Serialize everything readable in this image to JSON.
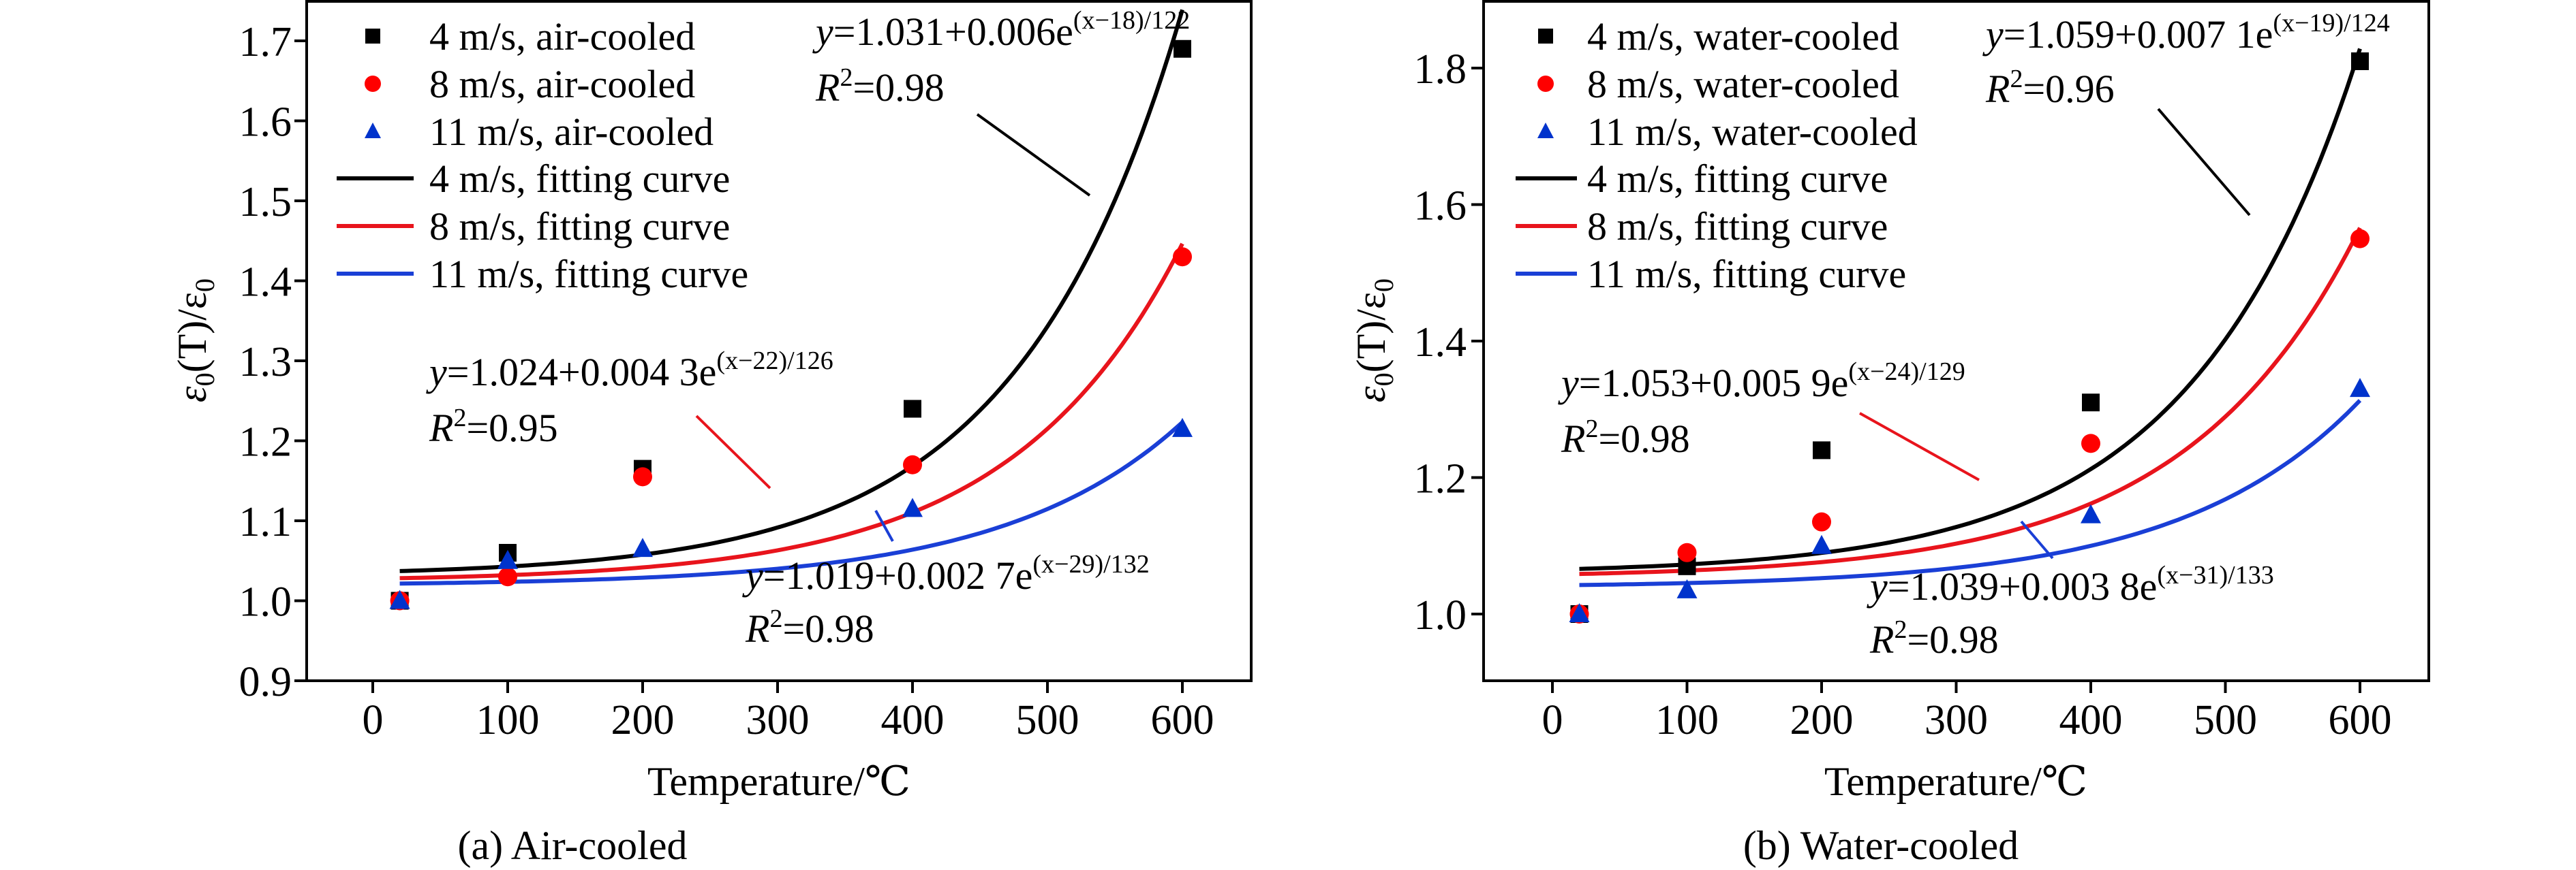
{
  "chart_data": [
    {
      "type": "scatter",
      "caption": "(a) Air-cooled",
      "xlabel": "Temperature/℃",
      "ylabel": {
        "main": "ε",
        "sub": "0",
        "mid": "(T)/ε",
        "sub2": "0"
      },
      "xlim": [
        -50,
        650
      ],
      "ylim": [
        0.9,
        1.75
      ],
      "xticks": [
        0,
        100,
        200,
        300,
        400,
        500,
        600
      ],
      "yticks": [
        0.9,
        1.0,
        1.1,
        1.2,
        1.3,
        1.4,
        1.5,
        1.6,
        1.7
      ],
      "ytick_labels": [
        "0.9",
        "1.0",
        "1.1",
        "1.2",
        "1.3",
        "1.4",
        "1.5",
        "1.6",
        "1.7"
      ],
      "grid": false,
      "legend": "top-left",
      "series": [
        {
          "name": "4 m/s, air-cooled",
          "marker": "square",
          "color": "#000000",
          "x": [
            20,
            100,
            200,
            400,
            600
          ],
          "y": [
            1.0,
            1.06,
            1.165,
            1.24,
            1.69
          ]
        },
        {
          "name": "8 m/s, air-cooled",
          "marker": "circle",
          "color": "#ff0000",
          "x": [
            20,
            100,
            200,
            400,
            600
          ],
          "y": [
            1.0,
            1.03,
            1.155,
            1.17,
            1.43
          ]
        },
        {
          "name": "11 m/s, air-cooled",
          "marker": "triangle",
          "color": "#0033cc",
          "x": [
            20,
            100,
            200,
            400,
            600
          ],
          "y": [
            1.0,
            1.05,
            1.065,
            1.115,
            1.215
          ]
        }
      ],
      "fits": [
        {
          "name": "4 m/s, fitting curve",
          "color": "#000000",
          "a": 1.031,
          "b": 0.006,
          "x0": 18,
          "t": 122,
          "eq_lhs": "y",
          "eq_rhs": "=1.031+0.006e",
          "exp": "(x−18)/122",
          "r2_label": "R",
          "r2": "=0.98"
        },
        {
          "name": "8 m/s, fitting curve",
          "color": "#e8141c",
          "a": 1.024,
          "b": 0.0043,
          "x0": 22,
          "t": 126,
          "eq_lhs": "y",
          "eq_rhs": "=1.024+0.004 3e",
          "exp": "(x−22)/126",
          "r2_label": "R",
          "r2": "=0.95"
        },
        {
          "name": "11 m/s, fitting curve",
          "color": "#1a3fd6",
          "a": 1.019,
          "b": 0.0027,
          "x0": 29,
          "t": 132,
          "eq_lhs": "y",
          "eq_rhs": "=1.019+0.002 7e",
          "exp": "(x−29)/132",
          "r2_label": "R",
          "r2": "=0.98"
        }
      ]
    },
    {
      "type": "scatter",
      "caption": "(b) Water-cooled",
      "xlabel": "Temperature/℃",
      "ylabel": {
        "main": "ε",
        "sub": "0",
        "mid": "(T)/ε",
        "sub2": "0"
      },
      "xlim": [
        -50,
        650
      ],
      "ylim": [
        0.9,
        1.9
      ],
      "xticks": [
        0,
        100,
        200,
        300,
        400,
        500,
        600
      ],
      "yticks": [
        1.0,
        1.2,
        1.4,
        1.6,
        1.8
      ],
      "ytick_labels": [
        "1.0",
        "1.2",
        "1.4",
        "1.6",
        "1.8"
      ],
      "grid": false,
      "legend": "top-left",
      "series": [
        {
          "name": "4 m/s, water-cooled",
          "marker": "square",
          "color": "#000000",
          "x": [
            20,
            100,
            200,
            400,
            600
          ],
          "y": [
            1.0,
            1.07,
            1.24,
            1.31,
            1.81
          ]
        },
        {
          "name": "8 m/s, water-cooled",
          "marker": "circle",
          "color": "#ff0000",
          "x": [
            20,
            100,
            200,
            400,
            600
          ],
          "y": [
            1.0,
            1.09,
            1.135,
            1.25,
            1.55
          ]
        },
        {
          "name": "11 m/s, water-cooled",
          "marker": "triangle",
          "color": "#0033cc",
          "x": [
            20,
            100,
            200,
            400,
            600
          ],
          "y": [
            1.0,
            1.035,
            1.1,
            1.145,
            1.33
          ]
        }
      ],
      "fits": [
        {
          "name": "4 m/s, fitting curve",
          "color": "#000000",
          "a": 1.059,
          "b": 0.0071,
          "x0": 19,
          "t": 124,
          "eq_lhs": "y",
          "eq_rhs": "=1.059+0.007 1e",
          "exp": "(x−19)/124",
          "r2_label": "R",
          "r2": "=0.96"
        },
        {
          "name": "8 m/s, fitting curve",
          "color": "#e8141c",
          "a": 1.053,
          "b": 0.0059,
          "x0": 24,
          "t": 129,
          "eq_lhs": "y",
          "eq_rhs": "=1.053+0.005 9e",
          "exp": "(x−24)/129",
          "r2_label": "R",
          "r2": "=0.98"
        },
        {
          "name": "11 m/s, fitting curve",
          "color": "#1a3fd6",
          "a": 1.039,
          "b": 0.0038,
          "x0": 31,
          "t": 133,
          "eq_lhs": "y",
          "eq_rhs": "=1.039+0.003 8e",
          "exp": "(x−31)/133",
          "r2_label": "R",
          "r2": "=0.98"
        }
      ]
    }
  ]
}
